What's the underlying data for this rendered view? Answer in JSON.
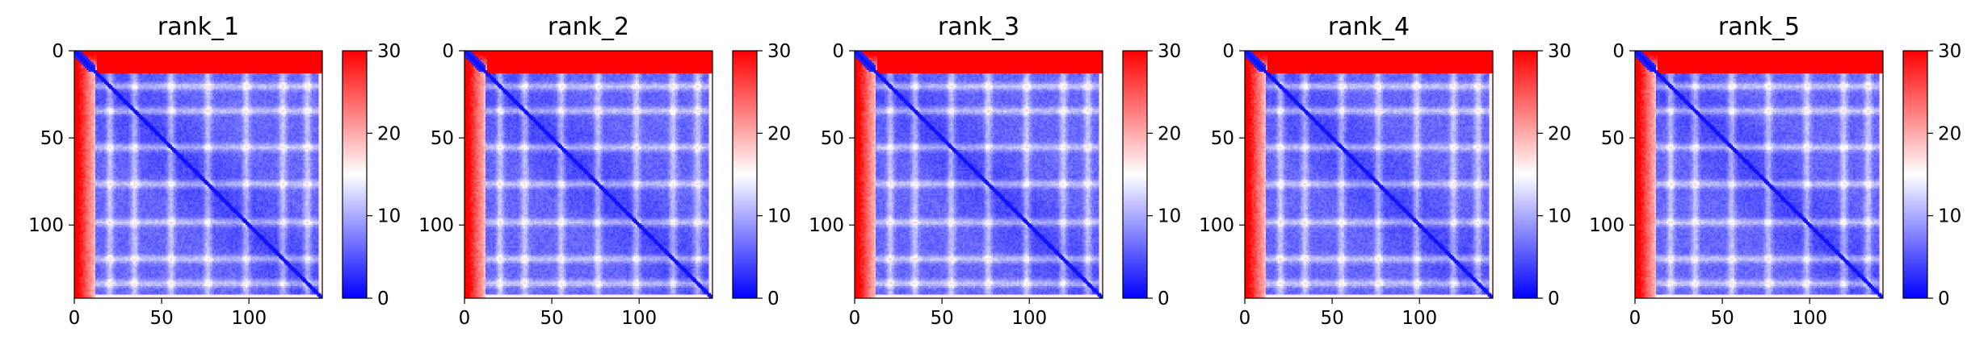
{
  "colormap": {
    "low": "#0000ff",
    "mid": "#ffffff",
    "high": "#ff0000"
  },
  "chart_data": [
    {
      "type": "heatmap",
      "title": "rank_1",
      "xlabel": "",
      "ylabel": "",
      "xlim": [
        0,
        142
      ],
      "ylim": [
        142,
        0
      ],
      "xticks": [
        0,
        50,
        100
      ],
      "yticks": [
        0,
        50,
        100
      ],
      "colorbar": {
        "range": [
          0,
          30
        ],
        "ticks": [
          0,
          10,
          20,
          30
        ]
      }
    },
    {
      "type": "heatmap",
      "title": "rank_2",
      "xlabel": "",
      "ylabel": "",
      "xlim": [
        0,
        142
      ],
      "ylim": [
        142,
        0
      ],
      "xticks": [
        0,
        50,
        100
      ],
      "yticks": [
        0,
        50,
        100
      ],
      "colorbar": {
        "range": [
          0,
          30
        ],
        "ticks": [
          0,
          10,
          20,
          30
        ]
      }
    },
    {
      "type": "heatmap",
      "title": "rank_3",
      "xlabel": "",
      "ylabel": "",
      "xlim": [
        0,
        142
      ],
      "ylim": [
        142,
        0
      ],
      "xticks": [
        0,
        50,
        100
      ],
      "yticks": [
        0,
        50,
        100
      ],
      "colorbar": {
        "range": [
          0,
          30
        ],
        "ticks": [
          0,
          10,
          20,
          30
        ]
      }
    },
    {
      "type": "heatmap",
      "title": "rank_4",
      "xlabel": "",
      "ylabel": "",
      "xlim": [
        0,
        142
      ],
      "ylim": [
        142,
        0
      ],
      "xticks": [
        0,
        50,
        100
      ],
      "yticks": [
        0,
        50,
        100
      ],
      "colorbar": {
        "range": [
          0,
          30
        ],
        "ticks": [
          0,
          10,
          20,
          30
        ]
      }
    },
    {
      "type": "heatmap",
      "title": "rank_5",
      "xlabel": "",
      "ylabel": "",
      "xlim": [
        0,
        142
      ],
      "ylim": [
        142,
        0
      ],
      "xticks": [
        0,
        50,
        100
      ],
      "yticks": [
        0,
        50,
        100
      ],
      "colorbar": {
        "range": [
          0,
          30
        ],
        "ticks": [
          0,
          10,
          20,
          30
        ]
      }
    }
  ]
}
